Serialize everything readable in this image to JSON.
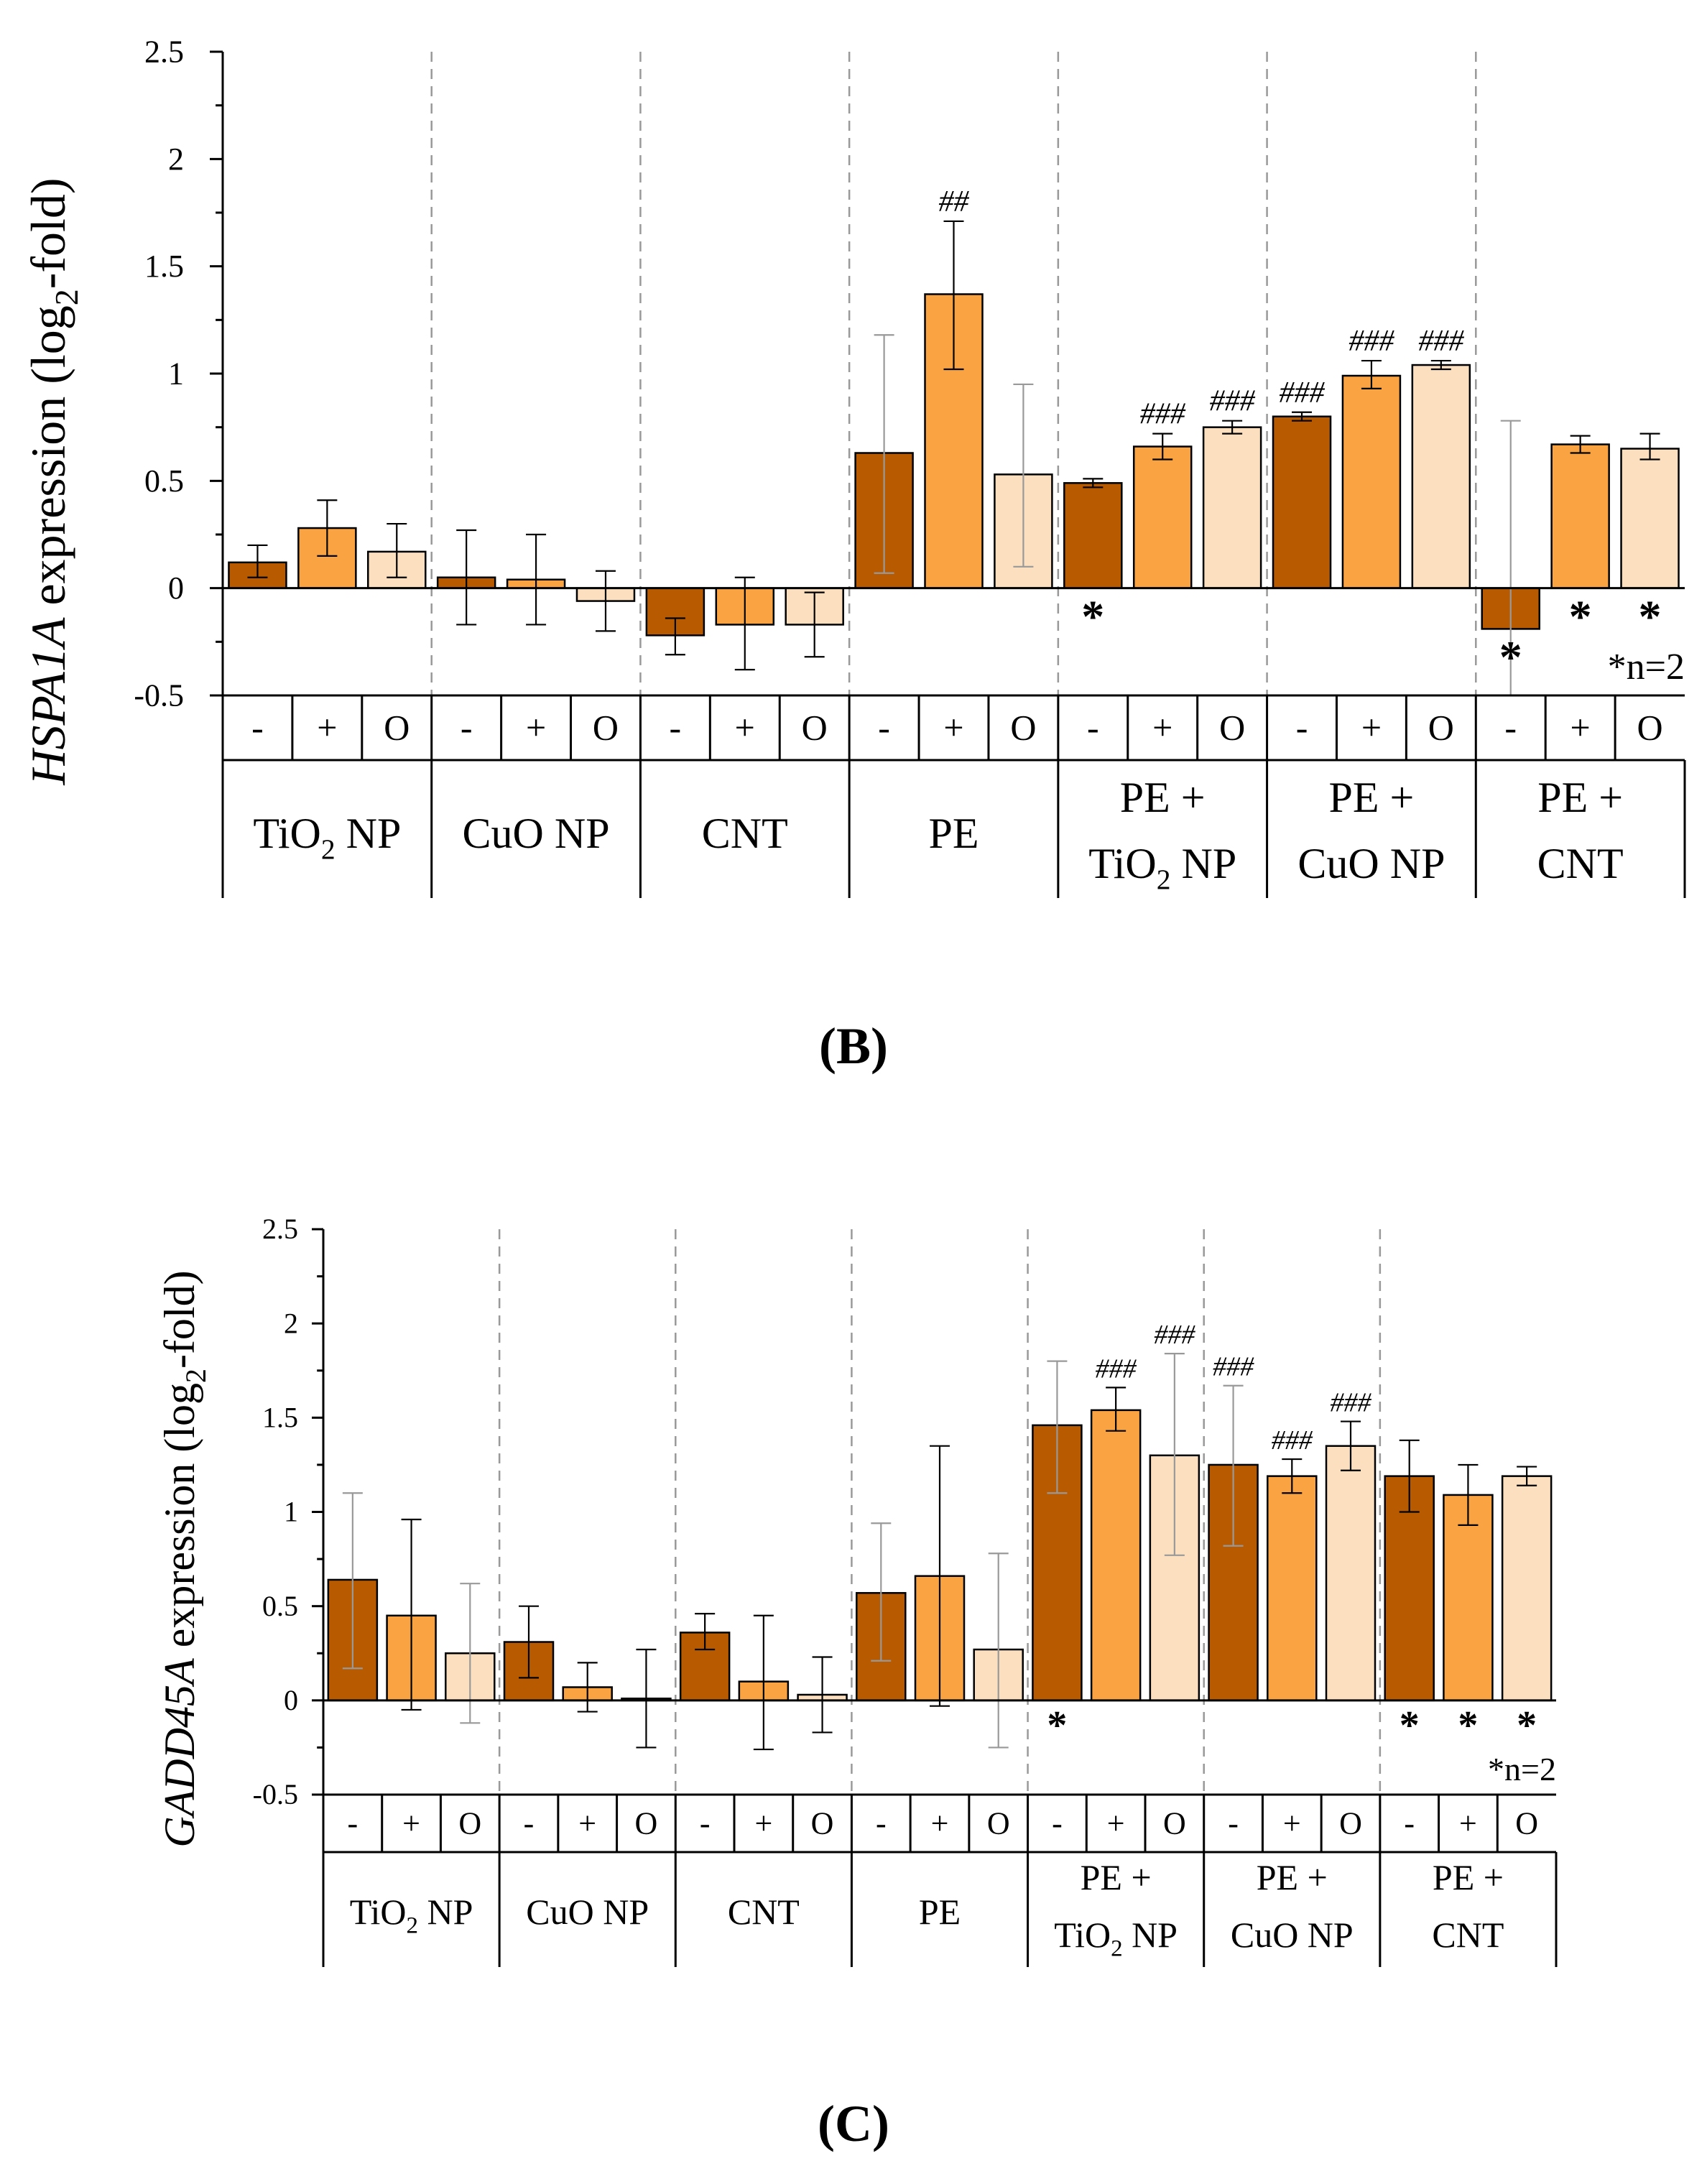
{
  "colors": {
    "minus": "#B85A00",
    "plus": "#F9A343",
    "zero": "#FBDFBF",
    "axis": "#000000",
    "divider": "#999999",
    "errLight": "#999999"
  },
  "chart_data": [
    {
      "type": "bar",
      "panel_label": "(B)",
      "ylabel_gene": "HSPA1A",
      "ylabel_rest": " expression (log",
      "ylabel_sub": "2",
      "ylabel_end": "-fold)",
      "ylim": [
        -0.5,
        2.5
      ],
      "yticks": [
        "2.5",
        "2",
        "1.5",
        "1",
        "0.5",
        "0",
        "-0.5"
      ],
      "note": "*n=2",
      "condition_labels": [
        "-",
        "+",
        "O"
      ],
      "groups": [
        {
          "line1": "TiO",
          "sub1": "2",
          "rest1": " NP",
          "line2": "",
          "sub2": "",
          "rest2": ""
        },
        {
          "line1": "CuO NP",
          "sub1": "",
          "rest1": "",
          "line2": "",
          "sub2": "",
          "rest2": ""
        },
        {
          "line1": "CNT",
          "sub1": "",
          "rest1": "",
          "line2": "",
          "sub2": "",
          "rest2": ""
        },
        {
          "line1": "PE",
          "sub1": "",
          "rest1": "",
          "line2": "",
          "sub2": "",
          "rest2": ""
        },
        {
          "line1": "PE +",
          "sub1": "",
          "rest1": "",
          "line2": "TiO",
          "sub2": "2",
          "rest2": " NP"
        },
        {
          "line1": "PE +",
          "sub1": "",
          "rest1": "",
          "line2": "CuO NP",
          "sub2": "",
          "rest2": ""
        },
        {
          "line1": "PE +",
          "sub1": "",
          "rest1": "",
          "line2": "CNT",
          "sub2": "",
          "rest2": ""
        }
      ],
      "bars": [
        {
          "v": 0.12,
          "lo": 0.05,
          "hi": 0.2,
          "sig": "",
          "star": false
        },
        {
          "v": 0.28,
          "lo": 0.15,
          "hi": 0.41,
          "sig": "",
          "star": false
        },
        {
          "v": 0.17,
          "lo": 0.05,
          "hi": 0.3,
          "sig": "",
          "star": false
        },
        {
          "v": 0.05,
          "lo": -0.17,
          "hi": 0.27,
          "sig": "",
          "star": false
        },
        {
          "v": 0.04,
          "lo": -0.17,
          "hi": 0.25,
          "sig": "",
          "star": false
        },
        {
          "v": -0.06,
          "lo": -0.2,
          "hi": 0.08,
          "sig": "",
          "star": false
        },
        {
          "v": -0.22,
          "lo": -0.31,
          "hi": -0.14,
          "sig": "",
          "star": false
        },
        {
          "v": -0.17,
          "lo": -0.38,
          "hi": 0.05,
          "sig": "",
          "star": false
        },
        {
          "v": -0.17,
          "lo": -0.32,
          "hi": -0.02,
          "sig": "",
          "star": false
        },
        {
          "v": 0.63,
          "lo": 0.07,
          "hi": 1.18,
          "sig": "",
          "star": false
        },
        {
          "v": 1.37,
          "lo": 1.02,
          "hi": 1.71,
          "sig": "##",
          "star": false
        },
        {
          "v": 0.53,
          "lo": 0.1,
          "hi": 0.95,
          "sig": "",
          "star": false
        },
        {
          "v": 0.49,
          "lo": 0.47,
          "hi": 0.51,
          "sig": "",
          "star": true
        },
        {
          "v": 0.66,
          "lo": 0.6,
          "hi": 0.72,
          "sig": "###",
          "star": false
        },
        {
          "v": 0.75,
          "lo": 0.72,
          "hi": 0.78,
          "sig": "###",
          "star": false
        },
        {
          "v": 0.8,
          "lo": 0.78,
          "hi": 0.82,
          "sig": "###",
          "star": false
        },
        {
          "v": 0.99,
          "lo": 0.93,
          "hi": 1.06,
          "sig": "###",
          "star": false
        },
        {
          "v": 1.04,
          "lo": 1.02,
          "hi": 1.06,
          "sig": "###",
          "star": false
        },
        {
          "v": -0.19,
          "lo": -0.5,
          "hi": 0.78,
          "sig": "",
          "star": true
        },
        {
          "v": 0.67,
          "lo": 0.63,
          "hi": 0.71,
          "sig": "",
          "star": true
        },
        {
          "v": 0.65,
          "lo": 0.6,
          "hi": 0.72,
          "sig": "",
          "star": true
        }
      ]
    },
    {
      "type": "bar",
      "panel_label": "(C)",
      "ylabel_gene": "GADD45A",
      "ylabel_rest": " expression (log",
      "ylabel_sub": "2",
      "ylabel_end": "-fold)",
      "ylim": [
        -0.5,
        2.5
      ],
      "yticks": [
        "2.5",
        "2",
        "1.5",
        "1",
        "0.5",
        "0",
        "-0.5"
      ],
      "note": "*n=2",
      "condition_labels": [
        "-",
        "+",
        "O"
      ],
      "groups": [
        {
          "line1": "TiO",
          "sub1": "2",
          "rest1": " NP",
          "line2": "",
          "sub2": "",
          "rest2": ""
        },
        {
          "line1": "CuO NP",
          "sub1": "",
          "rest1": "",
          "line2": "",
          "sub2": "",
          "rest2": ""
        },
        {
          "line1": "CNT",
          "sub1": "",
          "rest1": "",
          "line2": "",
          "sub2": "",
          "rest2": ""
        },
        {
          "line1": "PE",
          "sub1": "",
          "rest1": "",
          "line2": "",
          "sub2": "",
          "rest2": ""
        },
        {
          "line1": "PE +",
          "sub1": "",
          "rest1": "",
          "line2": "TiO",
          "sub2": "2",
          "rest2": " NP"
        },
        {
          "line1": "PE +",
          "sub1": "",
          "rest1": "",
          "line2": "CuO NP",
          "sub2": "",
          "rest2": ""
        },
        {
          "line1": "PE +",
          "sub1": "",
          "rest1": "",
          "line2": "CNT",
          "sub2": "",
          "rest2": ""
        }
      ],
      "bars": [
        {
          "v": 0.64,
          "lo": 0.17,
          "hi": 1.1,
          "sig": "",
          "star": false
        },
        {
          "v": 0.45,
          "lo": -0.05,
          "hi": 0.96,
          "sig": "",
          "star": false
        },
        {
          "v": 0.25,
          "lo": -0.12,
          "hi": 0.62,
          "sig": "",
          "star": false
        },
        {
          "v": 0.31,
          "lo": 0.12,
          "hi": 0.5,
          "sig": "",
          "star": false
        },
        {
          "v": 0.07,
          "lo": -0.06,
          "hi": 0.2,
          "sig": "",
          "star": false
        },
        {
          "v": 0.01,
          "lo": -0.25,
          "hi": 0.27,
          "sig": "",
          "star": false
        },
        {
          "v": 0.36,
          "lo": 0.27,
          "hi": 0.46,
          "sig": "",
          "star": false
        },
        {
          "v": 0.1,
          "lo": -0.26,
          "hi": 0.45,
          "sig": "",
          "star": false
        },
        {
          "v": 0.03,
          "lo": -0.17,
          "hi": 0.23,
          "sig": "",
          "star": false
        },
        {
          "v": 0.57,
          "lo": 0.21,
          "hi": 0.94,
          "sig": "",
          "star": false
        },
        {
          "v": 0.66,
          "lo": -0.03,
          "hi": 1.35,
          "sig": "",
          "star": false
        },
        {
          "v": 0.27,
          "lo": -0.25,
          "hi": 0.78,
          "sig": "",
          "star": false
        },
        {
          "v": 1.46,
          "lo": 1.1,
          "hi": 1.8,
          "sig": "",
          "star": true
        },
        {
          "v": 1.54,
          "lo": 1.43,
          "hi": 1.66,
          "sig": "###",
          "star": false
        },
        {
          "v": 1.3,
          "lo": 0.77,
          "hi": 1.84,
          "sig": "###",
          "star": false
        },
        {
          "v": 1.25,
          "lo": 0.82,
          "hi": 1.67,
          "sig": "###",
          "star": false
        },
        {
          "v": 1.19,
          "lo": 1.1,
          "hi": 1.28,
          "sig": "###",
          "star": false
        },
        {
          "v": 1.35,
          "lo": 1.22,
          "hi": 1.48,
          "sig": "###",
          "star": false
        },
        {
          "v": 1.19,
          "lo": 1.0,
          "hi": 1.38,
          "sig": "",
          "star": true
        },
        {
          "v": 1.09,
          "lo": 0.93,
          "hi": 1.25,
          "sig": "",
          "star": true
        },
        {
          "v": 1.19,
          "lo": 1.14,
          "hi": 1.24,
          "sig": "",
          "star": true
        }
      ]
    }
  ]
}
